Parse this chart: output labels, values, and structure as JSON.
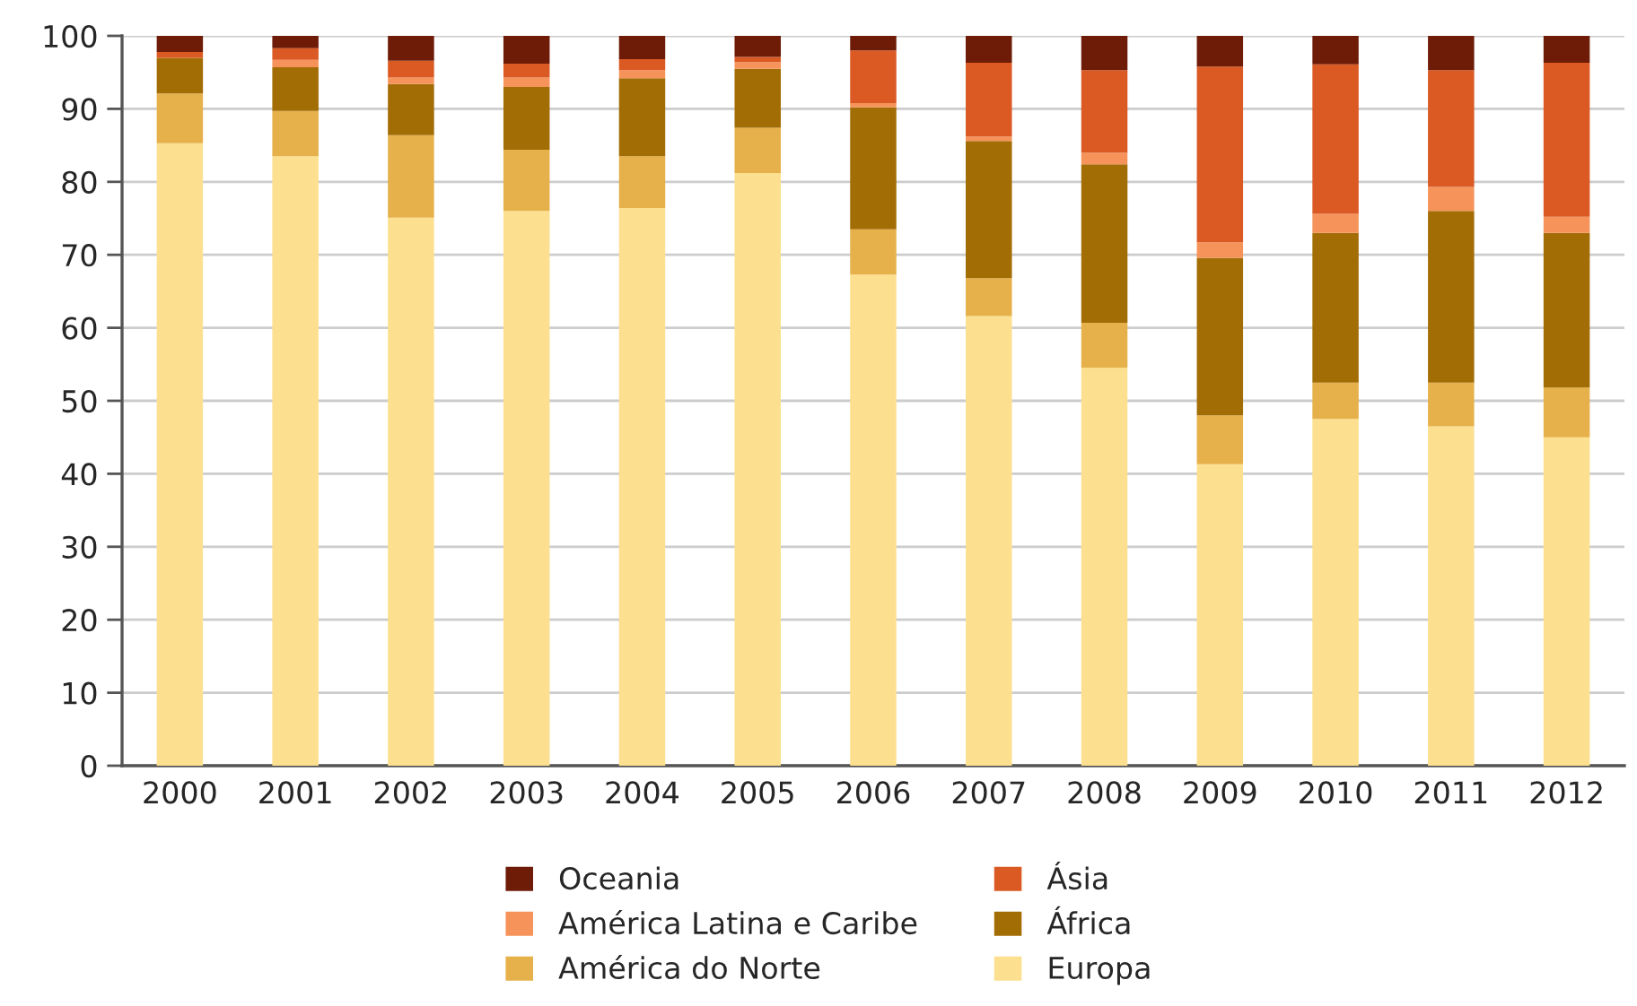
{
  "chart_data": {
    "type": "bar",
    "stacked": true,
    "categories": [
      "2000",
      "2001",
      "2002",
      "2003",
      "2004",
      "2005",
      "2006",
      "2007",
      "2008",
      "2009",
      "2010",
      "2011",
      "2012"
    ],
    "series": [
      {
        "name": "Europa",
        "color": "#fde08f",
        "values": [
          85.3,
          83.5,
          75.1,
          76.0,
          76.4,
          81.2,
          67.3,
          61.6,
          54.5,
          41.3,
          47.5,
          46.5,
          45.0
        ]
      },
      {
        "name": "América do Norte",
        "color": "#e6b14a",
        "values": [
          6.8,
          6.2,
          11.3,
          8.4,
          7.1,
          6.2,
          6.2,
          5.2,
          6.2,
          6.7,
          5.0,
          6.0,
          6.8
        ]
      },
      {
        "name": "África",
        "color": "#a36d05",
        "values": [
          4.9,
          6.0,
          7.0,
          8.6,
          10.7,
          8.1,
          16.7,
          18.8,
          21.7,
          21.6,
          20.5,
          23.5,
          21.2
        ]
      },
      {
        "name": "América Latina e Caribe",
        "color": "#f6935a",
        "values": [
          0,
          1.0,
          0.9,
          1.3,
          1.1,
          0.9,
          0.6,
          0.6,
          1.6,
          2.1,
          2.6,
          3.3,
          2.2
        ]
      },
      {
        "name": "Ásia",
        "color": "#db5a24",
        "values": [
          0.8,
          1.6,
          2.3,
          1.9,
          1.5,
          0.7,
          7.2,
          10.1,
          11.3,
          24.1,
          20.5,
          16.0,
          21.1
        ]
      },
      {
        "name": "Oceania",
        "color": "#6e1c08",
        "values": [
          2.2,
          1.7,
          3.4,
          3.8,
          3.2,
          2.9,
          2.0,
          3.7,
          4.7,
          4.2,
          3.9,
          4.7,
          3.7
        ]
      }
    ],
    "ylim": [
      0,
      100
    ],
    "yticks": [
      0,
      10,
      20,
      30,
      40,
      50,
      60,
      70,
      80,
      90,
      100
    ],
    "grid": "y",
    "legend": "bottom"
  }
}
